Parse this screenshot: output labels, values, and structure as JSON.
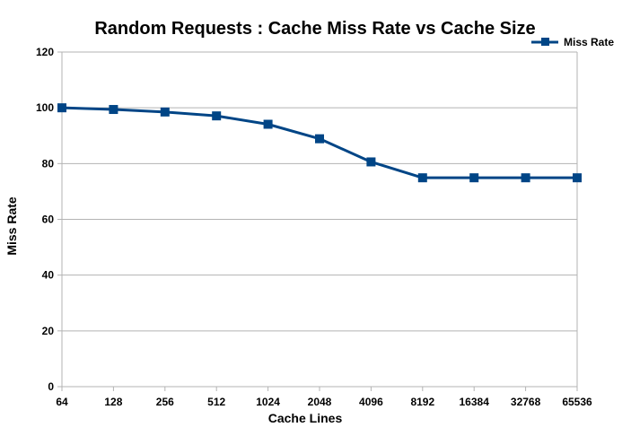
{
  "chart_data": {
    "type": "line",
    "title": "Random Requests : Cache Miss Rate vs Cache Size",
    "xlabel": "Cache Lines",
    "ylabel": "Miss Rate",
    "categories": [
      "64",
      "128",
      "256",
      "512",
      "1024",
      "2048",
      "4096",
      "8192",
      "16384",
      "32768",
      "65536"
    ],
    "series": [
      {
        "name": "Miss Rate",
        "values": [
          100,
          99.4,
          98.5,
          97.1,
          94.1,
          88.9,
          80.6,
          74.9,
          74.9,
          74.9,
          74.9
        ],
        "color": "#004586",
        "marker": "square"
      }
    ],
    "ylim": [
      0,
      120
    ],
    "yticks": [
      0,
      20,
      40,
      60,
      80,
      100,
      120
    ],
    "grid": true,
    "legend_position": "top-right"
  }
}
